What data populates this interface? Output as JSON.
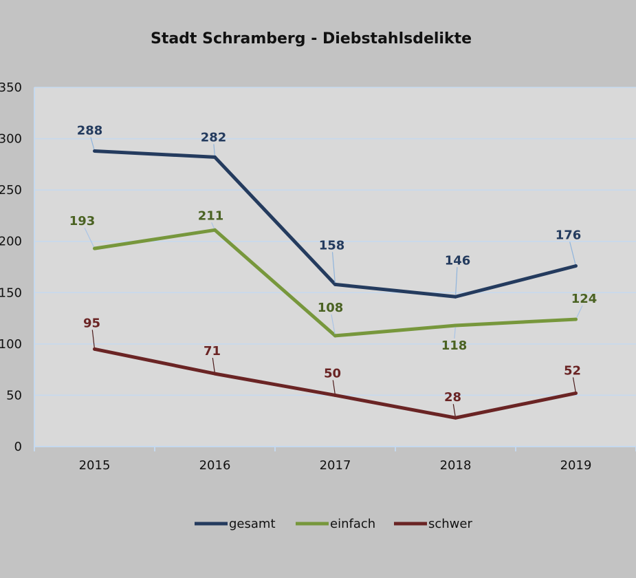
{
  "chart_data": {
    "type": "line",
    "title": "Stadt Schramberg - Diebstahlsdelikte",
    "categories": [
      "2015",
      "2016",
      "2017",
      "2018",
      "2019"
    ],
    "ylim": [
      0,
      350
    ],
    "yticks": [
      0,
      50,
      100,
      150,
      200,
      250,
      300,
      350
    ],
    "grid": true,
    "legend_position": "bottom",
    "series": [
      {
        "name": "gesamt",
        "color": "#243b5e",
        "values": [
          288,
          282,
          158,
          146,
          176
        ]
      },
      {
        "name": "einfach",
        "color": "#77973c",
        "values": [
          193,
          211,
          108,
          118,
          124
        ]
      },
      {
        "name": "schwer",
        "color": "#6a2424",
        "values": [
          95,
          71,
          50,
          28,
          52
        ]
      }
    ],
    "label_colors": {
      "gesamt": "#243b5e",
      "einfach": "#4a6222",
      "schwer": "#6a2424"
    }
  }
}
